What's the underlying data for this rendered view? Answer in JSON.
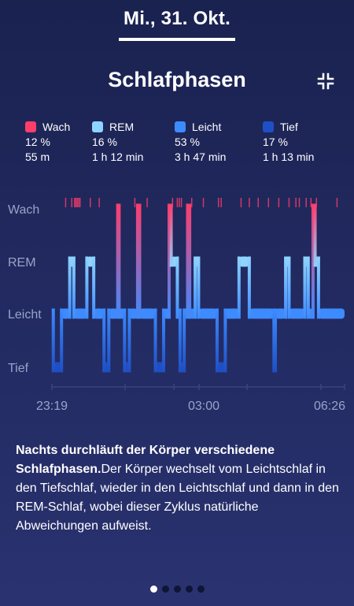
{
  "header": {
    "date": "Mi., 31. Okt.",
    "title": "Schlafphasen"
  },
  "icons": {
    "collapse": "collapse-arrows-icon"
  },
  "legend": [
    {
      "name": "Wach",
      "pct": "12 %",
      "duration": "55 m",
      "color": "#ff3d6b"
    },
    {
      "name": "REM",
      "pct": "16 %",
      "duration": "1 h 12 min",
      "color": "#8fd3ff"
    },
    {
      "name": "Leicht",
      "pct": "53 %",
      "duration": "3 h 47 min",
      "color": "#3d8bff"
    },
    {
      "name": "Tief",
      "pct": "17 %",
      "duration": "1 h 13 min",
      "color": "#1f4fc4"
    }
  ],
  "chart_data": {
    "type": "hypnogram",
    "y_levels": [
      "Wach",
      "REM",
      "Leicht",
      "Tief"
    ],
    "x_ticks": [
      "23:19",
      "03:00",
      "06:26"
    ],
    "x_range": [
      "23:19",
      "06:26"
    ],
    "colors": {
      "Wach": "#ff3d6b",
      "REM": "#8fd3ff",
      "Leicht": "#3d8bff",
      "Tief": "#1f4fc4"
    },
    "segments": [
      {
        "start": "23:19",
        "end": "23:21",
        "stage": "Leicht"
      },
      {
        "start": "23:21",
        "end": "23:33",
        "stage": "Tief"
      },
      {
        "start": "23:33",
        "end": "23:45",
        "stage": "Leicht"
      },
      {
        "start": "23:45",
        "end": "23:51",
        "stage": "REM"
      },
      {
        "start": "23:51",
        "end": "00:10",
        "stage": "Leicht"
      },
      {
        "start": "00:10",
        "end": "00:20",
        "stage": "REM"
      },
      {
        "start": "00:20",
        "end": "00:35",
        "stage": "Leicht"
      },
      {
        "start": "00:35",
        "end": "00:42",
        "stage": "Tief"
      },
      {
        "start": "00:42",
        "end": "00:55",
        "stage": "Leicht"
      },
      {
        "start": "00:55",
        "end": "00:57",
        "stage": "Wach"
      },
      {
        "start": "00:57",
        "end": "01:05",
        "stage": "Leicht"
      },
      {
        "start": "01:05",
        "end": "01:12",
        "stage": "Tief"
      },
      {
        "start": "01:12",
        "end": "01:24",
        "stage": "Leicht"
      },
      {
        "start": "01:24",
        "end": "01:27",
        "stage": "Wach"
      },
      {
        "start": "01:27",
        "end": "01:50",
        "stage": "Leicht"
      },
      {
        "start": "01:50",
        "end": "02:02",
        "stage": "Tief"
      },
      {
        "start": "02:02",
        "end": "02:10",
        "stage": "Leicht"
      },
      {
        "start": "02:10",
        "end": "02:13",
        "stage": "Wach"
      },
      {
        "start": "02:13",
        "end": "02:22",
        "stage": "REM"
      },
      {
        "start": "02:22",
        "end": "02:26",
        "stage": "Leicht"
      },
      {
        "start": "02:26",
        "end": "02:32",
        "stage": "Tief"
      },
      {
        "start": "02:32",
        "end": "02:37",
        "stage": "Leicht"
      },
      {
        "start": "02:37",
        "end": "02:40",
        "stage": "Wach"
      },
      {
        "start": "02:40",
        "end": "02:48",
        "stage": "Leicht"
      },
      {
        "start": "02:48",
        "end": "02:53",
        "stage": "REM"
      },
      {
        "start": "02:53",
        "end": "03:20",
        "stage": "Leicht"
      },
      {
        "start": "03:20",
        "end": "03:32",
        "stage": "Tief"
      },
      {
        "start": "03:32",
        "end": "03:52",
        "stage": "Leicht"
      },
      {
        "start": "03:52",
        "end": "04:07",
        "stage": "REM"
      },
      {
        "start": "04:07",
        "end": "04:43",
        "stage": "Leicht"
      },
      {
        "start": "04:43",
        "end": "04:45",
        "stage": "Tief"
      },
      {
        "start": "04:45",
        "end": "05:00",
        "stage": "Leicht"
      },
      {
        "start": "05:00",
        "end": "05:05",
        "stage": "REM"
      },
      {
        "start": "05:05",
        "end": "05:28",
        "stage": "Leicht"
      },
      {
        "start": "05:28",
        "end": "05:33",
        "stage": "REM"
      },
      {
        "start": "05:33",
        "end": "05:40",
        "stage": "Leicht"
      },
      {
        "start": "05:40",
        "end": "05:43",
        "stage": "Wach"
      },
      {
        "start": "05:43",
        "end": "05:48",
        "stage": "REM"
      },
      {
        "start": "05:48",
        "end": "06:26",
        "stage": "Leicht"
      }
    ],
    "wake_marks": [
      "23:39",
      "23:48",
      "23:52",
      "23:54",
      "23:56",
      "23:58",
      "00:00",
      "00:15",
      "00:28",
      "01:20",
      "01:38",
      "02:15",
      "02:22",
      "02:25",
      "02:28",
      "02:43",
      "03:00",
      "03:22",
      "03:26",
      "03:55",
      "04:07",
      "04:20",
      "04:35",
      "04:50",
      "05:05",
      "05:15",
      "05:20",
      "05:30",
      "05:37",
      "05:45",
      "06:15"
    ]
  },
  "description": {
    "bold": "Nachts durchläuft der Körper verschiedene Schlafphasen.",
    "text": "Der Körper wechselt vom Leichtschlaf in den Tiefschlaf, wieder in den Leichtschlaf und dann in den REM-Schlaf, wobei dieser Zyklus natürliche Abweichungen aufweist."
  },
  "pager": {
    "active_index": 0,
    "count": 5
  }
}
